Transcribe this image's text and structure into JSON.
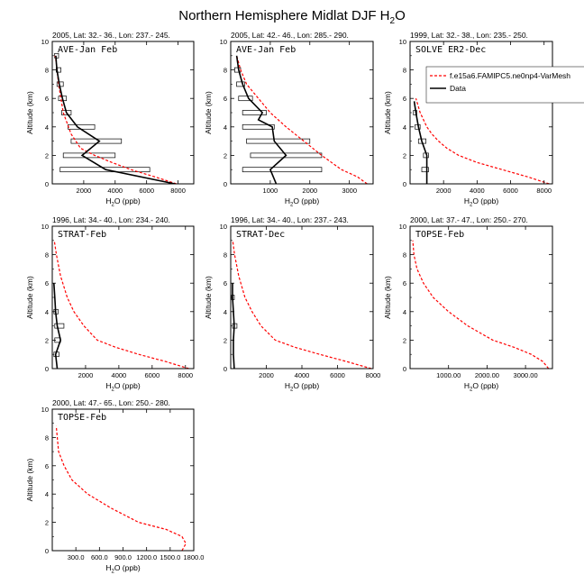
{
  "figure": {
    "title_main": "Northern Hemisphere Midlat DJF H",
    "title_sub": "2",
    "title_tail": "O"
  },
  "legend": {
    "model_label": "f.e15a6.FAMIPC5.ne0np4-VarMesh",
    "data_label": "Data",
    "model_color": "#ff0000",
    "data_color": "#000000"
  },
  "chart_data": [
    {
      "type": "line",
      "header": "2005, Lat: 32.- 36., Lon: 237.- 245.",
      "campaign": "AVE-Jan Feb",
      "xlabel": "H2O (ppb)",
      "ylabel": "Altitude (km)",
      "xlim": [
        0,
        9000
      ],
      "ylim": [
        0,
        10
      ],
      "xticks": [
        2000,
        4000,
        6000,
        8000
      ],
      "xtick_labels": [
        "2000",
        "4000",
        "6000",
        "8000"
      ],
      "yticks": [
        0,
        2,
        4,
        6,
        8,
        10
      ],
      "series": [
        {
          "name": "f.e15a6.FAMIPC5.ne0np4-VarMesh",
          "x": [
            7900,
            6500,
            5000,
            3800,
            2700,
            1800,
            1200,
            700,
            400,
            250,
            180
          ],
          "y": [
            0,
            0.5,
            1,
            1.5,
            2,
            2.5,
            3.5,
            5,
            7,
            8.5,
            9
          ]
        },
        {
          "name": "Data",
          "x": [
            7800,
            3400,
            1900,
            3000,
            1600,
            900,
            650,
            450,
            300,
            260,
            230
          ],
          "y": [
            0,
            1,
            2,
            3,
            4,
            5,
            6,
            7,
            8,
            8.5,
            9
          ]
        }
      ],
      "boxes": [
        {
          "y": 1,
          "xmin": 500,
          "xmax": 6200
        },
        {
          "y": 2,
          "xmin": 700,
          "xmax": 4000
        },
        {
          "y": 3,
          "xmin": 1200,
          "xmax": 4400
        },
        {
          "y": 4,
          "xmin": 1000,
          "xmax": 2700
        },
        {
          "y": 5,
          "xmin": 600,
          "xmax": 1200
        },
        {
          "y": 6,
          "xmin": 400,
          "xmax": 900
        },
        {
          "y": 7,
          "xmin": 300,
          "xmax": 700
        },
        {
          "y": 8,
          "xmin": 250,
          "xmax": 550
        },
        {
          "y": 9,
          "xmin": 150,
          "xmax": 400
        }
      ],
      "show_legend": false
    },
    {
      "type": "line",
      "header": "2005, Lat: 42.- 46., Lon: 285.- 290.",
      "campaign": "AVE-Jan Feb",
      "xlabel": "H2O (ppb)",
      "ylabel": "Altitude (km)",
      "xlim": [
        0,
        3600
      ],
      "ylim": [
        0,
        10
      ],
      "xticks": [
        1000,
        2000,
        3000
      ],
      "xtick_labels": [
        "1000",
        "2000",
        "3000"
      ],
      "yticks": [
        0,
        2,
        4,
        6,
        8,
        10
      ],
      "series": [
        {
          "name": "f.e15a6.FAMIPC5.ne0np4-VarMesh",
          "x": [
            3450,
            3200,
            2800,
            2300,
            1850,
            1400,
            1000,
            700,
            400,
            250,
            150
          ],
          "y": [
            0,
            0.5,
            1,
            2,
            3,
            4,
            5,
            6,
            7,
            8,
            9
          ]
        },
        {
          "name": "Data",
          "x": [
            1150,
            1000,
            1400,
            1100,
            1050,
            700,
            800,
            450,
            300,
            200,
            150
          ],
          "y": [
            0,
            1,
            2,
            3,
            4,
            4.5,
            5,
            6,
            7,
            8,
            9
          ]
        }
      ],
      "boxes": [
        {
          "y": 1,
          "xmin": 300,
          "xmax": 2300
        },
        {
          "y": 2,
          "xmin": 500,
          "xmax": 2300
        },
        {
          "y": 3,
          "xmin": 400,
          "xmax": 2000
        },
        {
          "y": 4,
          "xmin": 300,
          "xmax": 1100
        },
        {
          "y": 5,
          "xmin": 300,
          "xmax": 900
        },
        {
          "y": 6,
          "xmin": 200,
          "xmax": 550
        },
        {
          "y": 7,
          "xmin": 150,
          "xmax": 350
        },
        {
          "y": 8,
          "xmin": 100,
          "xmax": 250
        }
      ],
      "show_legend": false
    },
    {
      "type": "line",
      "header": "1999, Lat: 32.- 38., Lon: 235.- 250.",
      "campaign": "SOLVE ER2-Dec",
      "xlabel": "H2O (ppb)",
      "ylabel": "Altitude (km)",
      "xlim": [
        0,
        8500
      ],
      "ylim": [
        0,
        10
      ],
      "xticks": [
        2000,
        4000,
        6000,
        8000
      ],
      "xtick_labels": [
        "2000",
        "4000",
        "6000",
        "8000"
      ],
      "yticks": [
        0,
        2,
        4,
        6,
        8,
        10
      ],
      "series": [
        {
          "name": "f.e15a6.FAMIPC5.ne0np4-VarMesh",
          "x": [
            8300,
            7000,
            5500,
            4000,
            2900,
            2200,
            1700,
            1300,
            1000,
            600,
            350
          ],
          "y": [
            0,
            0.5,
            1,
            1.5,
            2,
            2.5,
            3,
            3.5,
            4,
            5,
            6
          ]
        },
        {
          "name": "Data",
          "x": [
            1000,
            1000,
            700,
            500,
            350,
            250
          ],
          "y": [
            0,
            2,
            3,
            4,
            5,
            5.8
          ]
        }
      ],
      "boxes": [
        {
          "y": 1,
          "xmin": 700,
          "xmax": 1100
        },
        {
          "y": 2,
          "xmin": 800,
          "xmax": 1100
        },
        {
          "y": 3,
          "xmin": 500,
          "xmax": 950
        },
        {
          "y": 4,
          "xmin": 300,
          "xmax": 600
        },
        {
          "y": 5,
          "xmin": 200,
          "xmax": 400
        }
      ],
      "show_legend": true
    },
    {
      "type": "line",
      "header": "1996, Lat: 34.- 40., Lon: 234.- 240.",
      "campaign": "STRAT-Feb",
      "xlabel": "H2O (ppb)",
      "ylabel": "Altitude (km)",
      "xlim": [
        0,
        8500
      ],
      "ylim": [
        0,
        10
      ],
      "xticks": [
        2000,
        4000,
        6000,
        8000
      ],
      "xtick_labels": [
        "2000",
        "4000",
        "6000",
        "8000"
      ],
      "yticks": [
        0,
        2,
        4,
        6,
        8,
        10
      ],
      "series": [
        {
          "name": "f.e15a6.FAMIPC5.ne0np4-VarMesh",
          "x": [
            8200,
            6800,
            5200,
            3800,
            2700,
            1900,
            1300,
            900,
            500,
            250,
            120
          ],
          "y": [
            0,
            0.5,
            1,
            1.5,
            2,
            3,
            4,
            5,
            6.5,
            8,
            9
          ]
        },
        {
          "name": "Data",
          "x": [
            300,
            200,
            500,
            300,
            200,
            150,
            100
          ],
          "y": [
            0,
            1,
            2,
            3,
            4,
            5,
            6
          ]
        }
      ],
      "boxes": [
        {
          "y": 1,
          "xmin": 100,
          "xmax": 400
        },
        {
          "y": 2,
          "xmin": 150,
          "xmax": 500
        },
        {
          "y": 3,
          "xmin": 150,
          "xmax": 700
        },
        {
          "y": 4,
          "xmin": 100,
          "xmax": 350
        }
      ],
      "show_legend": false
    },
    {
      "type": "line",
      "header": "1996, Lat: 34.- 40., Lon: 237.- 243.",
      "campaign": "STRAT-Dec",
      "xlabel": "H2O (ppb)",
      "ylabel": "Altitude (km)",
      "xlim": [
        0,
        8000
      ],
      "ylim": [
        0,
        10
      ],
      "xticks": [
        2000,
        4000,
        6000,
        8000
      ],
      "xtick_labels": [
        "2000",
        "4000",
        "6000",
        "8000"
      ],
      "yticks": [
        0,
        2,
        4,
        6,
        8,
        10
      ],
      "series": [
        {
          "name": "f.e15a6.FAMIPC5.ne0np4-VarMesh",
          "x": [
            7900,
            6500,
            5000,
            3600,
            2500,
            1700,
            1200,
            800,
            450,
            220,
            110
          ],
          "y": [
            0,
            0.5,
            1,
            1.5,
            2,
            3,
            4,
            5,
            6.5,
            8,
            9
          ]
        },
        {
          "name": "Data",
          "x": [
            200,
            150,
            150,
            200,
            150,
            100,
            100
          ],
          "y": [
            0,
            1,
            2,
            3,
            4,
            5,
            6
          ]
        }
      ],
      "boxes": [
        {
          "y": 3,
          "xmin": 100,
          "xmax": 350
        },
        {
          "y": 5,
          "xmin": 50,
          "xmax": 200
        }
      ],
      "show_legend": false
    },
    {
      "type": "line",
      "header": "2000, Lat: 37.- 47., Lon: 250.- 270.",
      "campaign": "TOPSE-Feb",
      "xlabel": "H2O (ppb)",
      "ylabel": "Altitude (km)",
      "xlim": [
        0,
        3700
      ],
      "ylim": [
        0,
        10
      ],
      "xticks": [
        1000,
        2000,
        3000
      ],
      "xtick_labels": [
        "1000.00",
        "2000.00",
        "3000.00"
      ],
      "yticks": [
        0,
        2,
        4,
        6,
        8,
        10
      ],
      "series": [
        {
          "name": "f.e15a6.FAMIPC5.ne0np4-VarMesh",
          "x": [
            3600,
            3450,
            3150,
            2700,
            2150,
            1500,
            1000,
            600,
            350,
            180,
            100,
            70
          ],
          "y": [
            0,
            0.5,
            1,
            1.5,
            2,
            3,
            4,
            5,
            6,
            7,
            8,
            9
          ]
        }
      ],
      "boxes": [],
      "show_legend": false
    },
    {
      "type": "line",
      "header": "2000, Lat: 47.- 65., Lon: 250.- 280.",
      "campaign": "TOPSE-Feb",
      "xlabel": "H2O (ppb)",
      "ylabel": "Altitude (km)",
      "xlim": [
        0,
        1800
      ],
      "ylim": [
        0,
        10
      ],
      "xticks": [
        300,
        600,
        900,
        1200,
        1500,
        1800
      ],
      "xtick_labels": [
        "300.0",
        "600.0",
        "900.0",
        "1200.0",
        "1500.0",
        "1800.0"
      ],
      "yticks": [
        0,
        2,
        4,
        6,
        8,
        10
      ],
      "series": [
        {
          "name": "f.e15a6.FAMIPC5.ne0np4-VarMesh",
          "x": [
            1650,
            1700,
            1650,
            1450,
            1100,
            750,
            450,
            250,
            150,
            80,
            50
          ],
          "y": [
            0,
            0.5,
            1,
            1.5,
            2,
            3,
            4,
            5,
            6,
            7,
            8.8
          ]
        }
      ],
      "boxes": [],
      "show_legend": false
    }
  ]
}
